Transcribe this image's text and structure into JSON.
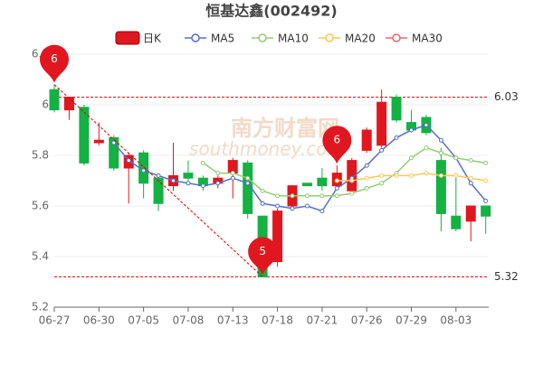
{
  "chart_data": {
    "type": "candlestick",
    "title": "恒基达鑫(002492)",
    "watermark": [
      "南方财富网",
      "southmoney.com"
    ],
    "categories": [
      "06-27",
      null,
      null,
      "06-30",
      null,
      null,
      "07-05",
      null,
      null,
      "07-08",
      null,
      null,
      "07-13",
      null,
      null,
      "07-18",
      null,
      null,
      "07-21",
      null,
      null,
      "07-26",
      null,
      null,
      "07-29",
      null,
      null,
      "08-03",
      null,
      null
    ],
    "ylim": [
      5.2,
      6.2
    ],
    "yticks": [
      5.2,
      5.4,
      5.6,
      5.8,
      6,
      6.2
    ],
    "grid": true,
    "legend": "top",
    "series": [
      {
        "name": "日K",
        "type": "candlestick",
        "color": "#e0171f",
        "down_color": "#14b143",
        "open": [
          6.06,
          5.98,
          5.99,
          5.85,
          5.87,
          5.75,
          5.81,
          5.71,
          5.68,
          5.73,
          5.71,
          5.69,
          5.73,
          5.77,
          5.56,
          5.38,
          5.6,
          5.69,
          5.71,
          5.68,
          5.66,
          5.82,
          5.84,
          6.03,
          5.93,
          5.95,
          5.78,
          5.56,
          5.54,
          5.6
        ],
        "close": [
          5.98,
          6.03,
          5.77,
          5.86,
          5.75,
          5.8,
          5.69,
          5.61,
          5.72,
          5.71,
          5.68,
          5.71,
          5.78,
          5.57,
          5.32,
          5.58,
          5.68,
          5.68,
          5.68,
          5.73,
          5.78,
          5.9,
          6.01,
          5.94,
          5.9,
          5.89,
          5.57,
          5.51,
          5.6,
          5.56
        ],
        "high": [
          6.08,
          6.03,
          6.0,
          5.93,
          5.88,
          5.81,
          5.82,
          5.72,
          5.85,
          5.78,
          5.72,
          5.72,
          5.79,
          5.78,
          5.56,
          5.59,
          5.68,
          5.69,
          5.75,
          5.76,
          5.79,
          5.91,
          6.06,
          6.04,
          5.98,
          5.96,
          5.83,
          5.73,
          5.6,
          5.6
        ],
        "low": [
          5.97,
          5.94,
          5.76,
          5.84,
          5.74,
          5.61,
          5.63,
          5.58,
          5.66,
          5.7,
          5.66,
          5.67,
          5.63,
          5.55,
          5.32,
          5.36,
          5.59,
          5.68,
          5.66,
          5.67,
          5.65,
          5.81,
          5.83,
          5.93,
          5.89,
          5.88,
          5.5,
          5.5,
          5.46,
          5.49
        ]
      },
      {
        "name": "MA5",
        "type": "line",
        "color": "#5470c6",
        "values": [
          null,
          null,
          null,
          null,
          5.85,
          5.78,
          5.74,
          5.72,
          5.7,
          5.69,
          5.68,
          5.69,
          5.71,
          5.69,
          5.61,
          5.6,
          5.59,
          5.6,
          5.58,
          5.67,
          5.71,
          5.76,
          5.82,
          5.87,
          5.9,
          5.92,
          5.86,
          5.79,
          5.69,
          5.62
        ]
      },
      {
        "name": "MA10",
        "type": "line",
        "color": "#91cc75",
        "values": [
          null,
          null,
          null,
          null,
          null,
          null,
          null,
          null,
          null,
          null,
          5.77,
          5.73,
          5.73,
          5.71,
          5.66,
          5.64,
          5.64,
          5.64,
          5.64,
          5.64,
          5.65,
          5.67,
          5.69,
          5.73,
          5.79,
          5.83,
          5.81,
          5.79,
          5.78,
          5.77
        ]
      },
      {
        "name": "MA20",
        "type": "line",
        "color": "#fac858",
        "values": [
          null,
          null,
          null,
          null,
          null,
          null,
          null,
          null,
          null,
          null,
          null,
          null,
          null,
          null,
          null,
          null,
          null,
          null,
          null,
          5.7,
          5.7,
          5.71,
          5.72,
          5.72,
          5.72,
          5.73,
          5.72,
          5.72,
          5.71,
          5.7
        ]
      },
      {
        "name": "MA30",
        "type": "line",
        "color": "#ee6666",
        "values": [
          null,
          null,
          null,
          null,
          null,
          null,
          null,
          null,
          null,
          null,
          null,
          null,
          null,
          null,
          null,
          null,
          null,
          null,
          null,
          null,
          null,
          null,
          null,
          null,
          null,
          null,
          null,
          null,
          null,
          null
        ]
      }
    ],
    "mark_lines": [
      6.03,
      5.32
    ],
    "mark_points": [
      {
        "label": "6",
        "index": 0,
        "value": 6.08
      },
      {
        "label": "5",
        "index": 14,
        "value": 5.32
      },
      {
        "label": "6",
        "index": 19,
        "value": 5.76
      }
    ]
  }
}
